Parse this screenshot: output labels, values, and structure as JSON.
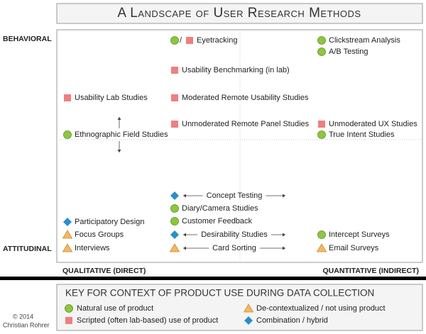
{
  "title": "A Landscape of User Research Methods",
  "axes": {
    "top": "BEHAVIORAL",
    "bottom": "ATTITUDINAL",
    "left": "QUALITATIVE (DIRECT)",
    "right": "QUANTITATIVE (INDIRECT)"
  },
  "methods": [
    {
      "label": "Eyetracking",
      "contexts": [
        "natural",
        "scripted"
      ],
      "separator": "/"
    },
    {
      "label": "Clickstream Analysis",
      "contexts": [
        "natural"
      ]
    },
    {
      "label": "A/B Testing",
      "contexts": [
        "natural"
      ]
    },
    {
      "label": "Usability Benchmarking (in lab)",
      "contexts": [
        "scripted"
      ]
    },
    {
      "label": "Usability Lab Studies",
      "contexts": [
        "scripted"
      ]
    },
    {
      "label": "Moderated Remote Usability Studies",
      "contexts": [
        "scripted"
      ]
    },
    {
      "label": "Unmoderated Remote Panel Studies",
      "contexts": [
        "scripted"
      ]
    },
    {
      "label": "Unmoderated UX Studies",
      "contexts": [
        "scripted"
      ]
    },
    {
      "label": "Ethnographic Field Studies",
      "contexts": [
        "natural"
      ]
    },
    {
      "label": "True Intent Studies",
      "contexts": [
        "natural"
      ]
    },
    {
      "label": "Concept Testing",
      "contexts": [
        "combination"
      ]
    },
    {
      "label": "Diary/Camera Studies",
      "contexts": [
        "natural"
      ]
    },
    {
      "label": "Customer Feedback",
      "contexts": [
        "natural"
      ]
    },
    {
      "label": "Participatory Design",
      "contexts": [
        "combination"
      ]
    },
    {
      "label": "Focus Groups",
      "contexts": [
        "decontextualized"
      ]
    },
    {
      "label": "Desirability Studies",
      "contexts": [
        "combination"
      ]
    },
    {
      "label": "Intercept Surveys",
      "contexts": [
        "natural"
      ]
    },
    {
      "label": "Interviews",
      "contexts": [
        "decontextualized"
      ]
    },
    {
      "label": "Card Sorting",
      "contexts": [
        "decontextualized"
      ]
    },
    {
      "label": "Email Surveys",
      "contexts": [
        "decontextualized"
      ]
    }
  ],
  "key": {
    "title": "KEY FOR CONTEXT OF PRODUCT USE DURING DATA COLLECTION",
    "items": [
      {
        "context": "natural",
        "label": "Natural use of product"
      },
      {
        "context": "decontextualized",
        "label": "De-contextualized / not using product"
      },
      {
        "context": "scripted",
        "label": "Scripted (often lab-based) use of product"
      },
      {
        "context": "combination",
        "label": "Combination / hybrid"
      }
    ]
  },
  "credit": {
    "year": "© 2014",
    "author": "Christian Rohrer"
  }
}
